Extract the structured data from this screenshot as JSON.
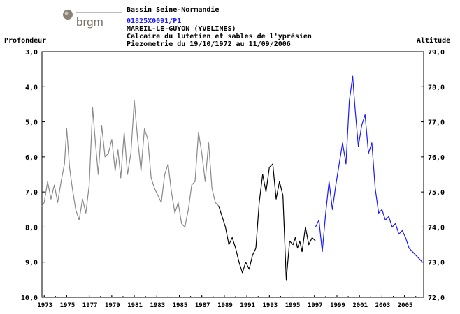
{
  "header": {
    "basin": "Bassin Seine-Normandie",
    "code": "01825X0091/P1",
    "station": "MAREIL-LE-GUYON (YVELINES)",
    "aquifer": "Calcaire du lutetien et sables de l'yprésien",
    "period": "Piezometrie du 19/10/1972 au 11/09/2006"
  },
  "logo": {
    "text": "brgm",
    "icon": "brgm-logo-icon"
  },
  "colors": {
    "historic": "#8a8a8a",
    "mid": "#000000",
    "recent": "#1a1aff",
    "grid": "#000000"
  },
  "chart_data": {
    "type": "line",
    "ylabel_left": "Profondeur",
    "ylabel_right": "Altitude",
    "ylim_left": [
      10.0,
      3.0
    ],
    "ylim_right": [
      72.0,
      79.0
    ],
    "y_ticks_left": [
      "3,0",
      "4,0",
      "5,0",
      "6,0",
      "7,0",
      "8,0",
      "9,0",
      "10,0"
    ],
    "y_ticks_right": [
      "79,0",
      "78,0",
      "77,0",
      "76,0",
      "75,0",
      "74,0",
      "73,0",
      "72,0"
    ],
    "x_ticks": [
      "1973",
      "1975",
      "1977",
      "1979",
      "1981",
      "1983",
      "1985",
      "1987",
      "1989",
      "1991",
      "1993",
      "1995",
      "1997",
      "1999",
      "2001",
      "2003",
      "2005"
    ],
    "xlim": [
      1972.8,
      2006.7
    ],
    "grid": false,
    "series": [
      {
        "color_key": "historic",
        "x": [
          1972.8,
          1973.0,
          1973.3,
          1973.6,
          1973.9,
          1974.2,
          1974.5,
          1974.8,
          1975.0,
          1975.25,
          1975.5,
          1975.8,
          1976.1,
          1976.4,
          1976.7,
          1977.0,
          1977.3,
          1977.55,
          1977.8,
          1978.1,
          1978.4,
          1978.7,
          1979.0,
          1979.3,
          1979.55,
          1979.8,
          1980.1,
          1980.4,
          1980.7,
          1981.0,
          1981.3,
          1981.6,
          1981.9,
          1982.2,
          1982.5,
          1982.8,
          1983.1,
          1983.4,
          1983.7,
          1984.0,
          1984.3,
          1984.6,
          1984.9,
          1985.2,
          1985.5,
          1985.8,
          1986.1,
          1986.4,
          1986.7,
          1987.0,
          1987.3,
          1987.6,
          1987.9,
          1988.2,
          1988.5
        ],
        "y": [
          7.4,
          7.3,
          6.7,
          7.2,
          6.8,
          7.3,
          6.7,
          6.2,
          5.2,
          6.3,
          6.9,
          7.5,
          7.8,
          7.2,
          7.6,
          6.8,
          4.6,
          5.6,
          6.5,
          5.1,
          6.0,
          5.9,
          5.5,
          6.4,
          5.8,
          6.6,
          5.3,
          6.5,
          5.9,
          4.4,
          5.5,
          6.4,
          5.2,
          5.5,
          6.6,
          6.9,
          7.1,
          7.3,
          6.5,
          6.2,
          7.0,
          7.6,
          7.3,
          7.9,
          8.0,
          7.5,
          6.8,
          6.7,
          5.3,
          5.9,
          6.7,
          5.6,
          6.9,
          7.3,
          7.4
        ]
      },
      {
        "color_key": "mid",
        "x": [
          1988.5,
          1988.8,
          1989.1,
          1989.4,
          1989.7,
          1990.0,
          1990.3,
          1990.6,
          1990.9,
          1991.2,
          1991.5,
          1991.8,
          1992.1,
          1992.4,
          1992.7,
          1993.0,
          1993.3,
          1993.6,
          1993.9,
          1994.2,
          1994.5,
          1994.8,
          1995.1,
          1995.3,
          1995.5,
          1995.7,
          1995.9,
          1996.2,
          1996.5,
          1996.8,
          1997.1
        ],
        "y": [
          7.4,
          7.7,
          8.0,
          8.5,
          8.3,
          8.6,
          9.0,
          9.3,
          9.0,
          9.2,
          8.8,
          8.6,
          7.3,
          6.5,
          7.0,
          6.3,
          6.2,
          7.2,
          6.7,
          7.1,
          9.5,
          8.4,
          8.5,
          8.3,
          8.6,
          8.4,
          8.7,
          8.0,
          8.5,
          8.3,
          8.4
        ]
      },
      {
        "color_key": "recent",
        "x": [
          1997.1,
          1997.4,
          1997.7,
          1998.0,
          1998.3,
          1998.6,
          1998.9,
          1999.2,
          1999.5,
          1999.8,
          2000.1,
          2000.4,
          2000.6,
          2000.9,
          2001.2,
          2001.5,
          2001.8,
          2002.1,
          2002.4,
          2002.7,
          2003.0,
          2003.3,
          2003.6,
          2003.9,
          2004.2,
          2004.5,
          2004.8,
          2005.1,
          2005.4,
          2005.7,
          2006.0,
          2006.3,
          2006.6
        ],
        "y": [
          8.0,
          7.8,
          8.7,
          7.6,
          6.7,
          7.5,
          6.8,
          6.2,
          5.6,
          6.2,
          4.4,
          3.7,
          4.6,
          5.7,
          5.1,
          4.8,
          5.9,
          5.6,
          6.9,
          7.6,
          7.5,
          7.8,
          7.7,
          8.0,
          7.9,
          8.2,
          8.1,
          8.3,
          8.6,
          8.7,
          8.8,
          8.9,
          9.0
        ]
      }
    ]
  }
}
